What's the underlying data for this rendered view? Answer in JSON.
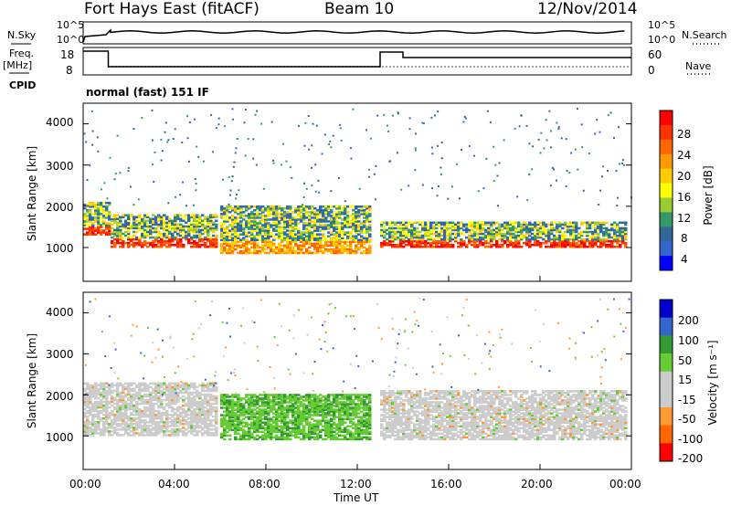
{
  "header": {
    "station": "Fort Hays East (fitACF)",
    "beam": "Beam 10",
    "date": "12/Nov/2014"
  },
  "strip": {
    "nsky_label": "N.Sky",
    "nsky_ticks": [
      "10^5",
      "10^0"
    ],
    "nsearch_label": "N.Search",
    "nsearch_ticks": [
      "10^5",
      "10^0"
    ],
    "freq_label": "Freq.",
    "freq_unit": "[MHz]",
    "freq_ticks": [
      "18",
      "8"
    ],
    "nave_label": "Nave",
    "nave_ticks": [
      "60",
      "0"
    ],
    "cpid_label": "CPID",
    "cpid_value": "normal (fast) 151 IF"
  },
  "power_panel": {
    "ylabel": "Slant Range [km]",
    "yticks": [
      "4000",
      "3000",
      "2000",
      "1000"
    ],
    "cbar_label": "Power [dB]",
    "cbar_ticks": [
      "28",
      "24",
      "20",
      "16",
      "12",
      "8",
      "4"
    ],
    "cbar_colors": [
      "#ff0000",
      "#ff3300",
      "#ff6600",
      "#ff9900",
      "#ffcc00",
      "#ffff00",
      "#99cc33",
      "#339966",
      "#336699",
      "#3366cc",
      "#0000ff"
    ]
  },
  "velocity_panel": {
    "ylabel": "Slant Range [km]",
    "yticks": [
      "4000",
      "3000",
      "2000",
      "1000"
    ],
    "cbar_label": "Velocity [m s⁻¹]",
    "cbar_ticks": [
      "200",
      "100",
      "50",
      "15",
      "-15",
      "-50",
      "-100",
      "-200"
    ],
    "cbar_colors": [
      "#0000cc",
      "#3366cc",
      "#339933",
      "#66cc33",
      "#cccccc",
      "#cccccc",
      "#ff9933",
      "#ff6600",
      "#ff0000"
    ]
  },
  "xaxis": {
    "label": "Time UT",
    "ticks": [
      "00:00",
      "04:00",
      "08:00",
      "12:00",
      "16:00",
      "20:00",
      "00:00"
    ]
  },
  "chart_data": [
    {
      "type": "heatmap",
      "title": "Power",
      "xlabel": "Time UT",
      "ylabel": "Slant Range [km]",
      "xlim": [
        0,
        24
      ],
      "ylim": [
        180,
        4500
      ],
      "colorbar_label": "Power [dB]",
      "colorbar_range": [
        0,
        32
      ],
      "bands": [
        {
          "t0": 0.0,
          "t1": 1.2,
          "r0": 1300,
          "r1": 2100,
          "level": "high"
        },
        {
          "t0": 1.2,
          "t1": 5.8,
          "r0": 1000,
          "r1": 1800,
          "level": "high"
        },
        {
          "t0": 6.0,
          "t1": 12.5,
          "r0": 850,
          "r1": 2000,
          "level": "medium"
        },
        {
          "t0": 13.0,
          "t1": 23.8,
          "r0": 1000,
          "r1": 1600,
          "level": "high"
        }
      ]
    },
    {
      "type": "heatmap",
      "title": "Velocity",
      "xlabel": "Time UT",
      "ylabel": "Slant Range [km]",
      "xlim": [
        0,
        24
      ],
      "ylim": [
        180,
        4500
      ],
      "colorbar_label": "Velocity [m s⁻¹]",
      "colorbar_range": [
        -250,
        250
      ],
      "bands": [
        {
          "t0": 0.0,
          "t1": 5.8,
          "r0": 1000,
          "r1": 2300,
          "level": "near-zero"
        },
        {
          "t0": 6.0,
          "t1": 12.5,
          "r0": 900,
          "r1": 2000,
          "level": "positive"
        },
        {
          "t0": 13.0,
          "t1": 23.8,
          "r0": 900,
          "r1": 2100,
          "level": "near-zero"
        }
      ]
    }
  ]
}
